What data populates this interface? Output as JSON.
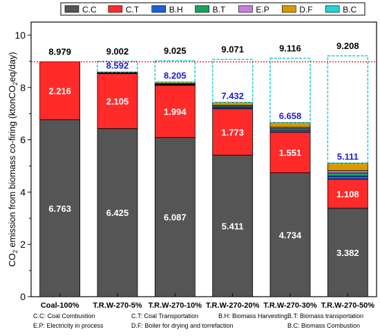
{
  "chart_data": {
    "type": "bar",
    "stacked": true,
    "ylabel": "CO2 emission from biomass co-firing (ktonCO2eq/day)",
    "ylim": [
      0,
      10.5
    ],
    "yticks": [
      0,
      2,
      4,
      6,
      8,
      10
    ],
    "categories": [
      "Coal-100%",
      "T.R.W-270-5%",
      "T.R.W-270-10%",
      "T.R.W-270-20%",
      "T.R.W-270-30%",
      "T.R.W-270-50%"
    ],
    "series": [
      {
        "name": "C.C",
        "color": "#555555",
        "values": [
          6.763,
          6.425,
          6.087,
          5.411,
          4.734,
          3.382
        ]
      },
      {
        "name": "C.T",
        "color": "#ff2b2b",
        "values": [
          2.216,
          2.105,
          1.994,
          1.773,
          1.551,
          1.108
        ]
      },
      {
        "name": "B.H",
        "color": "#1f5fd6",
        "values": [
          0,
          0.012,
          0.024,
          0.048,
          0.072,
          0.12
        ]
      },
      {
        "name": "B.T",
        "color": "#17a35a",
        "values": [
          0,
          0.012,
          0.024,
          0.048,
          0.072,
          0.12
        ]
      },
      {
        "name": "E.P",
        "color": "#c77dde",
        "values": [
          0,
          0.009,
          0.018,
          0.036,
          0.054,
          0.09
        ]
      },
      {
        "name": "D.F",
        "color": "#d69a00",
        "values": [
          0,
          0.029,
          0.058,
          0.116,
          0.175,
          0.291
        ]
      },
      {
        "name": "B.C",
        "color": "#2ad1d1",
        "values": [
          0,
          0.41,
          0.82,
          1.639,
          2.458,
          4.097
        ]
      }
    ],
    "totals": [
      8.979,
      9.002,
      9.025,
      9.071,
      9.116,
      9.208
    ],
    "totals_labels": [
      "8.979",
      "9.002",
      "9.025",
      "9.071",
      "9.116",
      "9.208"
    ],
    "cc_labels": [
      "6.763",
      "6.425",
      "6.087",
      "5.411",
      "4.734",
      "3.382"
    ],
    "ct_labels": [
      "2.216",
      "2.105",
      "1.994",
      "1.773",
      "1.551",
      "1.108"
    ],
    "excl_bc_totals": [
      null,
      8.592,
      8.205,
      7.432,
      6.658,
      5.111
    ],
    "excl_bc_labels": [
      "",
      "8.592",
      "8.205",
      "7.432",
      "6.658",
      "5.111"
    ],
    "reference_line": 8.979,
    "reference_color": "#ff0000",
    "legend_position": "top"
  },
  "footnotes": {
    "cc": "C.C: Coal Combustion",
    "ct": "C.T: Coal Transportation",
    "bh": "B.H: Biomass Harvesting",
    "bt": "B.T: Biomass transportation",
    "ep": "E.P: Electricity in process",
    "df": "D.F: Boiler for drying and torrefaction",
    "bc": "B.C: Biomass Combustion"
  }
}
